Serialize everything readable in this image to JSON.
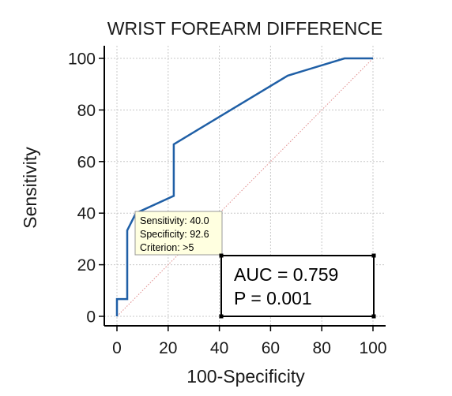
{
  "chart_data": {
    "type": "line",
    "title": "WRIST FOREARM DIFFERENCE",
    "xlabel": "100-Specificity",
    "ylabel": "Sensitivity",
    "xlim": [
      0,
      100
    ],
    "ylim": [
      0,
      100
    ],
    "x_ticks": [
      "0",
      "20",
      "40",
      "60",
      "80",
      "100"
    ],
    "y_ticks": [
      "0",
      "20",
      "40",
      "60",
      "80",
      "100"
    ],
    "grid": true,
    "series": [
      {
        "color": "#1f5fa6",
        "x": [
          0,
          0,
          4,
          4,
          7.4,
          22.2,
          22.2,
          66.7,
          88.9,
          100
        ],
        "y": [
          0,
          6.7,
          6.7,
          33.3,
          40,
          46.7,
          66.7,
          93.3,
          100,
          100
        ]
      },
      {
        "style": "dotted-diagonal",
        "color": "#e08a8a",
        "x": [
          0,
          100
        ],
        "y": [
          0,
          100
        ]
      }
    ],
    "tooltip": {
      "lines": [
        "Sensitivity: 40.0",
        "Specificity: 92.6",
        "Criterion: >5"
      ],
      "point": [
        7.4,
        40
      ],
      "background": "#ffffe0"
    },
    "stats_box": {
      "auc": "AUC = 0.759",
      "p": "P = 0.001"
    }
  }
}
